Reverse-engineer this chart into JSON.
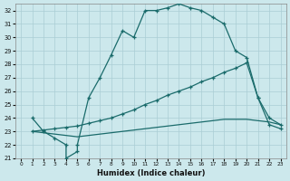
{
  "xlabel": "Humidex (Indice chaleur)",
  "bg_color": "#cce8ec",
  "grid_color": "#aacdd4",
  "line_color": "#1a6b6b",
  "xlim": [
    -0.5,
    23.5
  ],
  "ylim": [
    21,
    32.5
  ],
  "xticks": [
    0,
    1,
    2,
    3,
    4,
    5,
    6,
    7,
    8,
    9,
    10,
    11,
    12,
    13,
    14,
    15,
    16,
    17,
    18,
    19,
    20,
    21,
    22,
    23
  ],
  "yticks": [
    21,
    22,
    23,
    24,
    25,
    26,
    27,
    28,
    29,
    30,
    31,
    32
  ],
  "curve1_x": [
    1,
    2,
    3,
    4,
    4,
    5,
    5,
    6,
    7,
    8,
    9,
    10,
    11,
    12,
    13,
    14,
    15,
    16,
    17,
    18,
    19,
    20,
    21,
    22,
    23
  ],
  "curve1_y": [
    24,
    23,
    22.5,
    22,
    21,
    21.5,
    22,
    25.5,
    27,
    28.7,
    30.5,
    30,
    32,
    32,
    32.2,
    32.5,
    32.2,
    32,
    31.5,
    31,
    29,
    28.5,
    25.5,
    24,
    23.5
  ],
  "curve2_x": [
    1,
    2,
    3,
    4,
    5,
    6,
    7,
    8,
    9,
    10,
    11,
    12,
    13,
    14,
    15,
    16,
    17,
    18,
    19,
    20,
    21,
    22,
    23
  ],
  "curve2_y": [
    23,
    23.1,
    23.2,
    23.3,
    23.4,
    23.6,
    23.8,
    24.0,
    24.3,
    24.6,
    25.0,
    25.3,
    25.7,
    26.0,
    26.3,
    26.7,
    27.0,
    27.4,
    27.7,
    28.1,
    25.5,
    23.5,
    23.2
  ],
  "curve3_x": [
    1,
    2,
    3,
    4,
    5,
    6,
    7,
    8,
    9,
    10,
    11,
    12,
    13,
    14,
    15,
    16,
    17,
    18,
    19,
    20,
    21,
    22,
    23
  ],
  "curve3_y": [
    23,
    22.9,
    22.8,
    22.7,
    22.6,
    22.7,
    22.8,
    22.9,
    23.0,
    23.1,
    23.2,
    23.3,
    23.4,
    23.5,
    23.6,
    23.7,
    23.8,
    23.9,
    23.9,
    23.9,
    23.8,
    23.7,
    23.5
  ]
}
